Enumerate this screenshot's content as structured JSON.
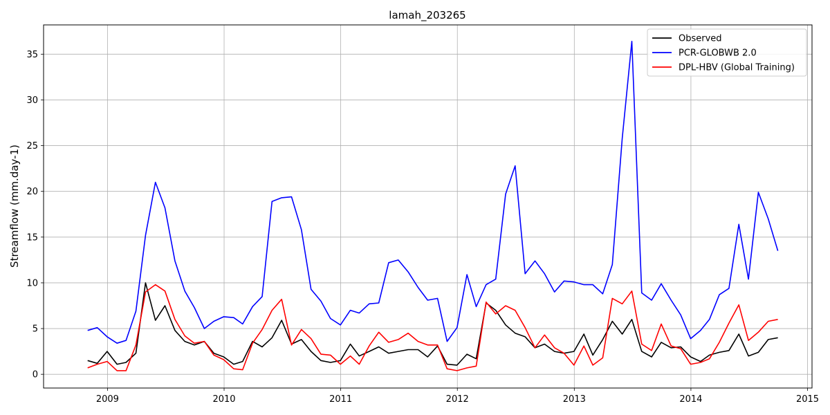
{
  "chart_data": {
    "type": "line",
    "title": "lamah_203265",
    "xlabel": "",
    "ylabel": "Streamflow (mm.day-1)",
    "xlim": [
      "2008-06-15",
      "2015-01-15"
    ],
    "ylim": [
      -1.5,
      38.2
    ],
    "x_ticks": [
      "2009",
      "2010",
      "2011",
      "2012",
      "2013",
      "2014",
      "2015"
    ],
    "y_ticks": [
      0,
      5,
      10,
      15,
      20,
      25,
      30,
      35
    ],
    "grid": true,
    "legend_position": "top-right",
    "x": [
      "2008-10-31",
      "2008-11-30",
      "2008-12-31",
      "2009-01-31",
      "2009-02-28",
      "2009-03-31",
      "2009-04-30",
      "2009-05-31",
      "2009-06-30",
      "2009-07-31",
      "2009-08-31",
      "2009-09-30",
      "2009-10-31",
      "2009-11-30",
      "2009-12-31",
      "2010-01-31",
      "2010-02-28",
      "2010-03-31",
      "2010-04-30",
      "2010-05-31",
      "2010-06-30",
      "2010-07-31",
      "2010-08-31",
      "2010-09-30",
      "2010-10-31",
      "2010-11-30",
      "2010-12-31",
      "2011-01-31",
      "2011-02-28",
      "2011-03-31",
      "2011-04-30",
      "2011-05-31",
      "2011-06-30",
      "2011-07-31",
      "2011-08-31",
      "2011-09-30",
      "2011-10-31",
      "2011-11-30",
      "2011-12-31",
      "2012-01-31",
      "2012-02-29",
      "2012-03-31",
      "2012-04-30",
      "2012-05-31",
      "2012-06-30",
      "2012-07-31",
      "2012-08-31",
      "2012-09-30",
      "2012-10-31",
      "2012-11-30",
      "2012-12-31",
      "2013-01-31",
      "2013-02-28",
      "2013-03-31",
      "2013-04-30",
      "2013-05-31",
      "2013-06-30",
      "2013-07-31",
      "2013-08-31",
      "2013-09-30",
      "2013-10-31",
      "2013-11-30",
      "2013-12-31",
      "2014-01-31",
      "2014-02-28",
      "2014-03-31",
      "2014-04-30",
      "2014-05-31",
      "2014-06-30",
      "2014-07-31",
      "2014-08-31",
      "2014-09-30"
    ],
    "series": [
      {
        "name": "Observed",
        "color": "#000000",
        "values": [
          1.5,
          1.2,
          2.5,
          1.1,
          1.3,
          2.3,
          10.0,
          5.9,
          7.5,
          4.8,
          3.6,
          3.2,
          3.6,
          2.3,
          1.9,
          1.1,
          1.4,
          3.6,
          3.0,
          4.0,
          5.9,
          3.3,
          3.8,
          2.5,
          1.5,
          1.3,
          1.5,
          3.3,
          2.0,
          2.5,
          3.0,
          2.3,
          2.5,
          2.7,
          2.7,
          1.9,
          3.1,
          1.1,
          1.0,
          2.2,
          1.7,
          7.8,
          7.0,
          5.4,
          4.5,
          4.1,
          2.9,
          3.3,
          2.5,
          2.3,
          2.5,
          4.4,
          2.1,
          3.8,
          5.8,
          4.4,
          6.0,
          2.5,
          1.9,
          3.5,
          2.9,
          3.0,
          1.9,
          1.4,
          2.1,
          2.4,
          2.6,
          4.4,
          2.0,
          2.4,
          3.8,
          4.0
        ]
      },
      {
        "name": "PCR-GLOBWB 2.0",
        "color": "#0000ff",
        "values": [
          4.8,
          5.1,
          4.1,
          3.4,
          3.7,
          6.9,
          15.2,
          21.0,
          18.2,
          12.4,
          9.1,
          7.3,
          5.0,
          5.8,
          6.3,
          6.2,
          5.5,
          7.4,
          8.5,
          18.9,
          19.3,
          19.4,
          15.8,
          9.3,
          8.0,
          6.1,
          5.4,
          7.0,
          6.7,
          7.7,
          7.8,
          12.2,
          12.5,
          11.2,
          9.5,
          8.1,
          8.3,
          3.6,
          5.1,
          10.9,
          7.4,
          9.8,
          10.4,
          19.7,
          22.8,
          11.0,
          12.4,
          11.0,
          9.0,
          10.2,
          10.1,
          9.8,
          9.8,
          8.8,
          12.0,
          25.8,
          36.4,
          8.9,
          8.1,
          9.9,
          8.1,
          6.5,
          3.9,
          4.8,
          6.0,
          8.7,
          9.4,
          16.4,
          10.4,
          19.9,
          17.0,
          13.5
        ]
      },
      {
        "name": "DPL-HBV (Global Training)",
        "color": "#ff0000",
        "values": [
          0.7,
          1.1,
          1.4,
          0.4,
          0.4,
          3.2,
          9.0,
          9.8,
          9.1,
          6.0,
          4.2,
          3.4,
          3.6,
          2.1,
          1.6,
          0.6,
          0.5,
          3.4,
          4.9,
          7.0,
          8.2,
          3.2,
          4.9,
          3.9,
          2.2,
          2.1,
          1.1,
          2.0,
          1.1,
          3.1,
          4.6,
          3.5,
          3.8,
          4.5,
          3.6,
          3.2,
          3.2,
          0.6,
          0.4,
          0.7,
          0.9,
          7.9,
          6.6,
          7.5,
          7.0,
          5.1,
          2.9,
          4.3,
          2.9,
          2.3,
          1.0,
          3.1,
          1.0,
          1.8,
          8.3,
          7.7,
          9.1,
          3.3,
          2.6,
          5.5,
          3.1,
          2.8,
          1.1,
          1.3,
          1.7,
          3.5,
          5.6,
          7.6,
          3.7,
          4.6,
          5.8,
          6.0
        ]
      }
    ]
  }
}
